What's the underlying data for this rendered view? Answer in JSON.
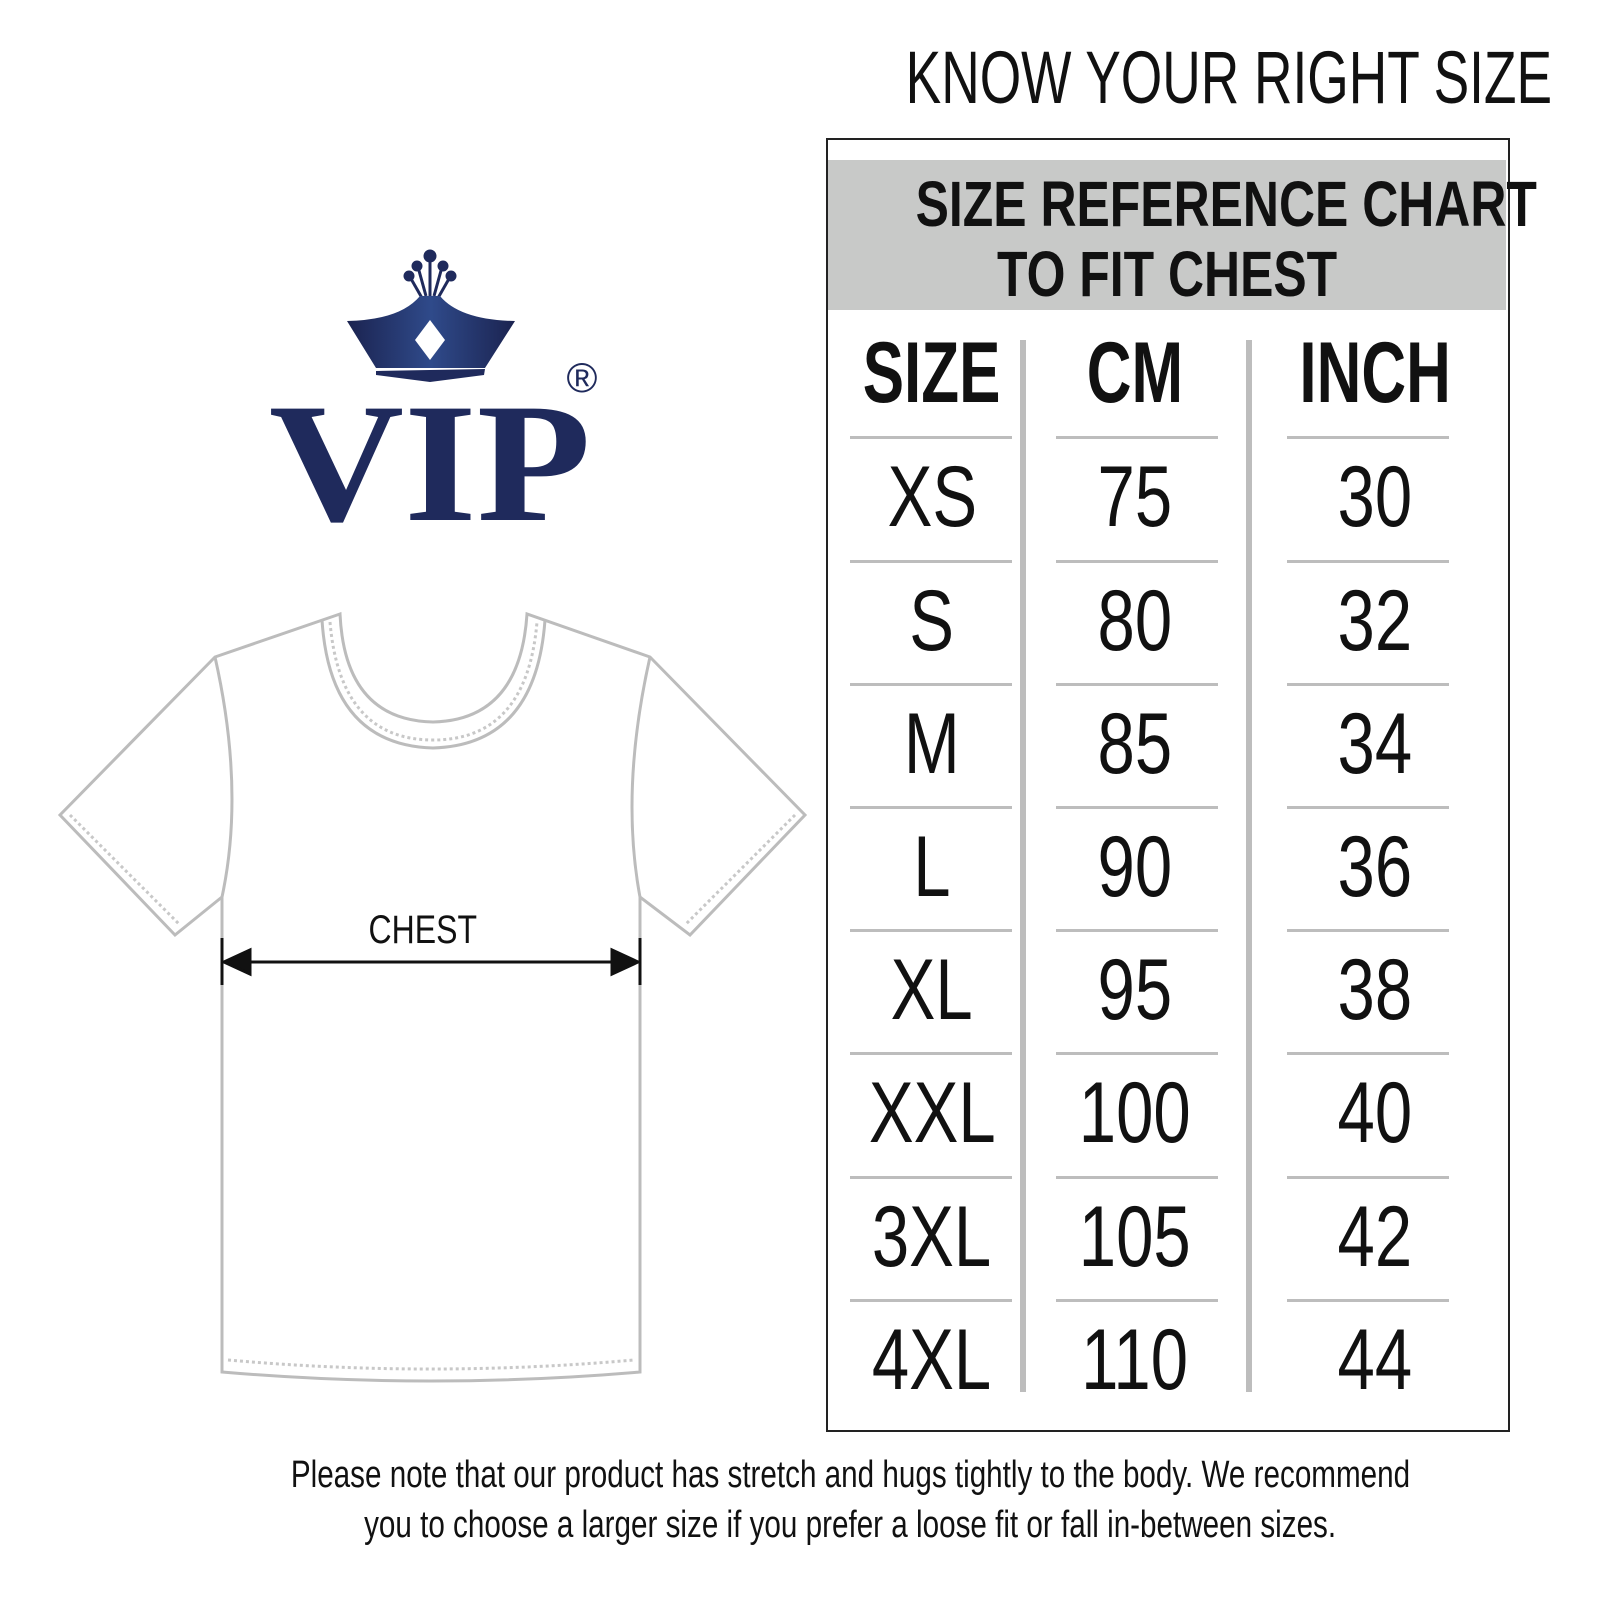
{
  "heading": "KNOW YOUR RIGHT SIZE",
  "brand": {
    "name": "VIP",
    "registered_mark": "®",
    "color": "#1f2a5c"
  },
  "chart": {
    "title_line1": "SIZE REFERENCE CHART",
    "title_line2": "TO FIT CHEST",
    "header_bg": "#c8c9c8",
    "columns": [
      "SIZE",
      "CM",
      "INCH"
    ],
    "rows": [
      [
        "XS",
        "75",
        "30"
      ],
      [
        "S",
        "80",
        "32"
      ],
      [
        "M",
        "85",
        "34"
      ],
      [
        "L",
        "90",
        "36"
      ],
      [
        "XL",
        "95",
        "38"
      ],
      [
        "XXL",
        "100",
        "40"
      ],
      [
        "3XL",
        "105",
        "42"
      ],
      [
        "4XL",
        "110",
        "44"
      ]
    ]
  },
  "diagram": {
    "measure_label": "CHEST"
  },
  "note": {
    "line1": "Please note that our product has stretch and hugs tightly to the body. We recommend",
    "line2": "you to choose a larger size if you prefer a loose fit or fall in-between sizes."
  }
}
